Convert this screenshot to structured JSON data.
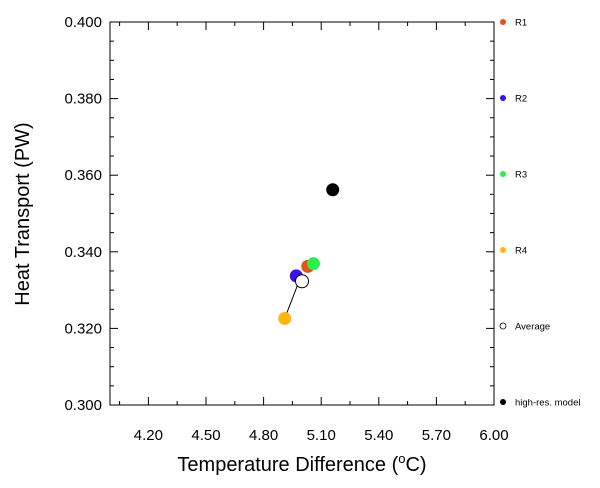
{
  "chart_data": {
    "type": "scatter",
    "title": "",
    "xlabel_prefix": "Temperature Difference (",
    "xlabel_sup": "o",
    "xlabel_suffix": "C)",
    "ylabel": "Heat Transport (PW)",
    "xlim": [
      4.0,
      6.0
    ],
    "ylim": [
      0.3,
      0.4
    ],
    "x_ticks": [
      4.2,
      4.5,
      4.8,
      5.1,
      5.4,
      5.7,
      6.0
    ],
    "x_tick_labels": [
      "4.20",
      "4.50",
      "4.80",
      "5.10",
      "5.40",
      "5.70",
      "6.00"
    ],
    "y_ticks": [
      0.3,
      0.32,
      0.34,
      0.36,
      0.38,
      0.4
    ],
    "y_tick_labels": [
      "0.300",
      "0.320",
      "0.340",
      "0.360",
      "0.380",
      "0.400"
    ],
    "grid": false,
    "legend_position": "right",
    "series": [
      {
        "name": "R1",
        "color": "#e8501a",
        "x": 5.03,
        "y": 0.3362
      },
      {
        "name": "R2",
        "color": "#3a10e6",
        "x": 4.97,
        "y": 0.3337
      },
      {
        "name": "R3",
        "color": "#2cf04a",
        "x": 5.06,
        "y": 0.3369
      },
      {
        "name": "R4",
        "color": "#ffb612",
        "x": 4.91,
        "y": 0.3226
      },
      {
        "name": "Average",
        "color": "#ffffff",
        "stroke": "#000000",
        "x": 5.0,
        "y": 0.3323
      },
      {
        "name": "high-res. model",
        "color": "#000000",
        "x": 5.16,
        "y": 0.3562
      }
    ],
    "connector_line": {
      "from": [
        4.91,
        0.3226
      ],
      "to": [
        4.99,
        0.333
      ]
    }
  }
}
